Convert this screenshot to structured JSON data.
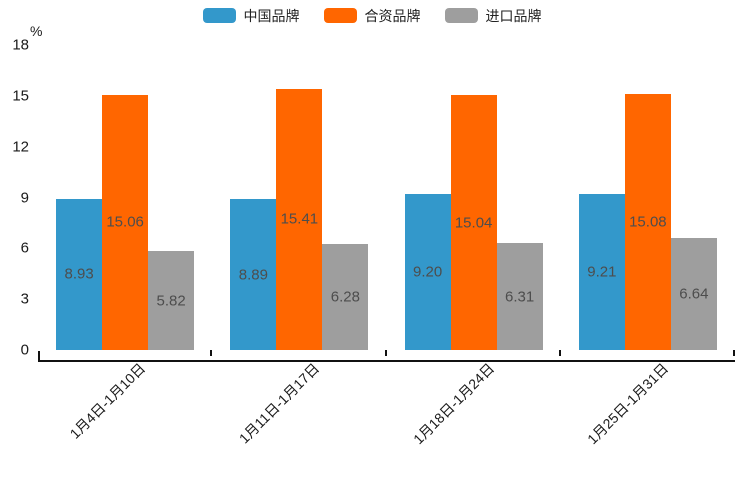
{
  "chart_data": {
    "type": "bar",
    "title": "",
    "xlabel": "",
    "ylabel": "%",
    "ylim": [
      0,
      18
    ],
    "yticks": [
      0,
      3,
      6,
      9,
      12,
      15,
      18
    ],
    "grid": false,
    "legend_position": "top",
    "categories": [
      "1月4日-1月10日",
      "1月11日-1月17日",
      "1月18日-1月24日",
      "1月25日-1月31日"
    ],
    "series": [
      {
        "name": "中国品牌",
        "color": "#3398CB",
        "values": [
          8.93,
          8.89,
          9.2,
          9.21
        ],
        "labels": [
          "8.93",
          "8.89",
          "9.20",
          "9.21"
        ]
      },
      {
        "name": "合资品牌",
        "color": "#FF6600",
        "values": [
          15.06,
          15.41,
          15.04,
          15.08
        ],
        "labels": [
          "15.06",
          "15.41",
          "15.04",
          "15.08"
        ]
      },
      {
        "name": "进口品牌",
        "color": "#9E9E9E",
        "values": [
          5.82,
          6.28,
          6.31,
          6.64
        ],
        "labels": [
          "5.82",
          "6.28",
          "6.31",
          "6.64"
        ]
      }
    ],
    "value_label_color": "#4D4D4D",
    "axis_color": "#111111"
  }
}
